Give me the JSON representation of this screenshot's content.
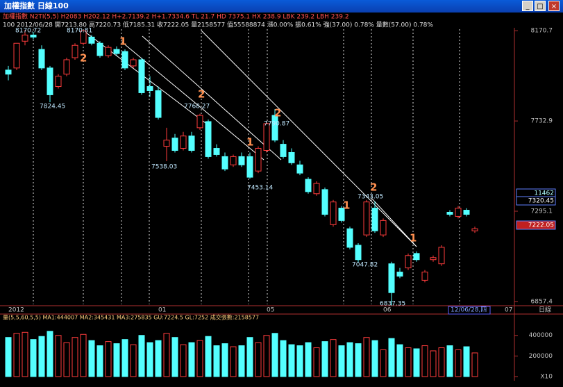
{
  "window": {
    "title": "加權指數 日線100",
    "buttons": [
      "_",
      "□",
      "×"
    ]
  },
  "header": {
    "line1": "加權指數 N2TI(5,5) H2083 H202.12 H+2.7139.2 H+1.7334.6 TL 21.7 HD 7375.1 HX 238.9 LBK 239.2 LBH 239.2",
    "line2": "100 2012/06/28 開7213.80 高7220.73 低7185.31 收7222.05 量2158577 值55588874 漲0.00% 振0.61% 強(37.00) 0.78% 量數(57.00) 0.78%"
  },
  "chart_data": [
    {
      "type": "candlestick",
      "up_color": "#ff3c3c",
      "down_color": "#54ffff",
      "categories": [
        "2012",
        null,
        null,
        null,
        null,
        null,
        null,
        null,
        null,
        null,
        null,
        null,
        null,
        null,
        null,
        null,
        null,
        null,
        "01",
        null,
        null,
        null,
        null,
        null,
        null,
        null,
        null,
        null,
        null,
        null,
        null,
        "05",
        null,
        null,
        null,
        null,
        null,
        null,
        null,
        null,
        null,
        null,
        null,
        null,
        null,
        "06",
        null,
        null,
        null,
        null,
        null,
        null,
        null,
        null,
        null,
        null,
        null
      ],
      "open": [
        7980,
        7990,
        8120,
        8150,
        8080,
        7990,
        7900,
        7960,
        8040,
        8110,
        8140,
        8110,
        8050,
        8080,
        8070,
        8000,
        8030,
        7900,
        7880,
        7610,
        7650,
        7600,
        7660,
        7700,
        7730,
        7600,
        7560,
        7520,
        7560,
        7560,
        7490,
        7590,
        7760,
        7620,
        7580,
        7520,
        7450,
        7380,
        7400,
        7230,
        7310,
        7210,
        7130,
        7180,
        7310,
        7180,
        7040,
        7000,
        7020,
        7090,
        6960,
        7060,
        7040,
        7290,
        7270,
        7300,
        7200
      ],
      "high": [
        8000,
        8110,
        8175,
        8165,
        8100,
        8000,
        7960,
        8040,
        8110,
        8172,
        8150,
        8120,
        8100,
        8095,
        8080,
        8040,
        8040,
        7950,
        7900,
        7700,
        7670,
        7680,
        7680,
        7768,
        7740,
        7620,
        7580,
        7570,
        7580,
        7580,
        7610,
        7730,
        7790,
        7640,
        7600,
        7540,
        7460,
        7440,
        7410,
        7350,
        7320,
        7220,
        7140,
        7350,
        7343,
        7260,
        7050,
        7020,
        7090,
        7100,
        7010,
        7080,
        7130,
        7300,
        7320,
        7310,
        7220
      ],
      "low": [
        7930,
        7980,
        8100,
        8130,
        7980,
        7824,
        7890,
        7950,
        8030,
        8100,
        8100,
        8040,
        8040,
        8050,
        7980,
        7990,
        7860,
        7850,
        7740,
        7538,
        7580,
        7590,
        7580,
        7690,
        7550,
        7560,
        7490,
        7510,
        7510,
        7453,
        7480,
        7580,
        7630,
        7550,
        7520,
        7470,
        7380,
        7370,
        7270,
        7220,
        7240,
        7110,
        7047,
        7170,
        7190,
        7170,
        6837,
        6970,
        7010,
        7050,
        6950,
        7050,
        7030,
        7270,
        7260,
        7270,
        7190
      ],
      "close": [
        7960,
        8110,
        8150,
        8140,
        7990,
        7860,
        7950,
        8030,
        8100,
        8170,
        8110,
        8050,
        8090,
        8060,
        7990,
        8030,
        7870,
        7880,
        7750,
        7640,
        7590,
        7660,
        7590,
        7760,
        7560,
        7570,
        7500,
        7560,
        7520,
        7460,
        7600,
        7720,
        7640,
        7560,
        7530,
        7480,
        7390,
        7430,
        7280,
        7340,
        7250,
        7120,
        7060,
        7340,
        7200,
        7250,
        6900,
        6980,
        7080,
        7060,
        7000,
        7070,
        7120,
        7280,
        7310,
        7280,
        7210
      ],
      "ylim": [
        6840,
        8185
      ],
      "yticks": [
        {
          "value": 8170.7,
          "label": "8170.7"
        },
        {
          "value": 7732.9,
          "label": "7732.9"
        },
        {
          "value": 7295.1,
          "label": "7295.1"
        },
        {
          "value": 6857.4,
          "label": "6857.4"
        }
      ],
      "annotations": [
        "8170.72",
        "8170.81",
        "7824.45",
        "7538.03",
        "7768.27",
        "7790.87",
        "7453.14",
        "7343.05",
        "7047.82",
        "6837.35"
      ],
      "waves": [
        "1",
        "2",
        "2",
        "1",
        "2",
        "1",
        "2",
        "1"
      ],
      "right_labels": [
        "11462",
        "7320.45",
        "7222.05"
      ],
      "date_box": "12/06/28,四",
      "next_period": "07",
      "period": "日線"
    },
    {
      "type": "bar",
      "title": "量(5,5,60,5,5) MA1:444007 MA2:345431 MA3:275835 GU:7224.5 GL:7252 成交張數:2158577",
      "values": [
        380000,
        420000,
        430000,
        360000,
        390000,
        440000,
        400000,
        330000,
        380000,
        410000,
        350000,
        300000,
        340000,
        320000,
        360000,
        310000,
        400000,
        330000,
        350000,
        420000,
        380000,
        310000,
        330000,
        350000,
        390000,
        300000,
        320000,
        290000,
        300000,
        380000,
        330000,
        400000,
        420000,
        350000,
        310000,
        300000,
        330000,
        280000,
        340000,
        360000,
        300000,
        330000,
        320000,
        380000,
        350000,
        260000,
        370000,
        310000,
        280000,
        270000,
        300000,
        250000,
        280000,
        300000,
        260000,
        290000,
        230000
      ],
      "ylim": [
        0,
        540000
      ],
      "yticks": [
        {
          "value": 0,
          "label": "X10"
        },
        200000,
        400000
      ]
    }
  ]
}
